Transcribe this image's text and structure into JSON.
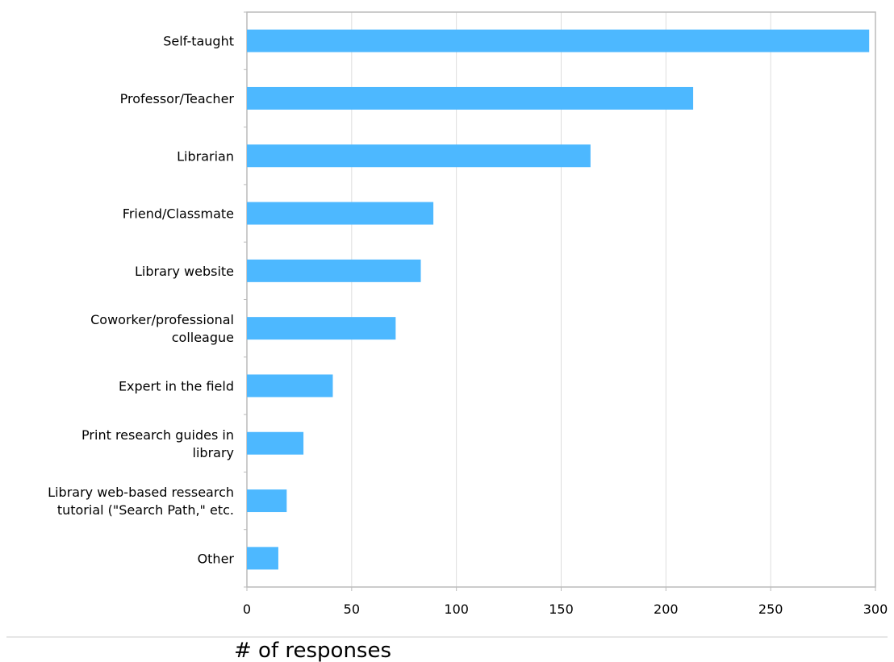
{
  "chart_data": {
    "type": "bar",
    "orientation": "horizontal",
    "categories": [
      "Self-taught",
      "Professor/Teacher",
      "Librarian",
      "Friend/Classmate",
      "Library website",
      "Coworker/professional colleague",
      "Expert in the field",
      "Print research guides in library",
      "Library web-based ressearch tutorial (\"Search Path,\" etc.",
      "Other"
    ],
    "category_lines": [
      [
        "Self-taught"
      ],
      [
        "Professor/Teacher"
      ],
      [
        "Librarian"
      ],
      [
        "Friend/Classmate"
      ],
      [
        "Library website"
      ],
      [
        "Coworker/professional",
        "colleague"
      ],
      [
        "Expert in the field"
      ],
      [
        "Print research guides in",
        "library"
      ],
      [
        "Library web-based ressearch",
        "tutorial (\"Search Path,\" etc."
      ],
      [
        "Other"
      ]
    ],
    "values": [
      297,
      213,
      164,
      89,
      83,
      71,
      41,
      27,
      19,
      15
    ],
    "xticks": [
      "0",
      "50",
      "100",
      "150",
      "200",
      "250",
      "300"
    ],
    "xlim": [
      0,
      300
    ],
    "xlabel": "# of responses",
    "ylabel": "",
    "title": "",
    "grid": "vertical",
    "bar_color": "#4db8ff",
    "grid_color": "#dddddd",
    "axis_color": "#bbbbbb"
  }
}
